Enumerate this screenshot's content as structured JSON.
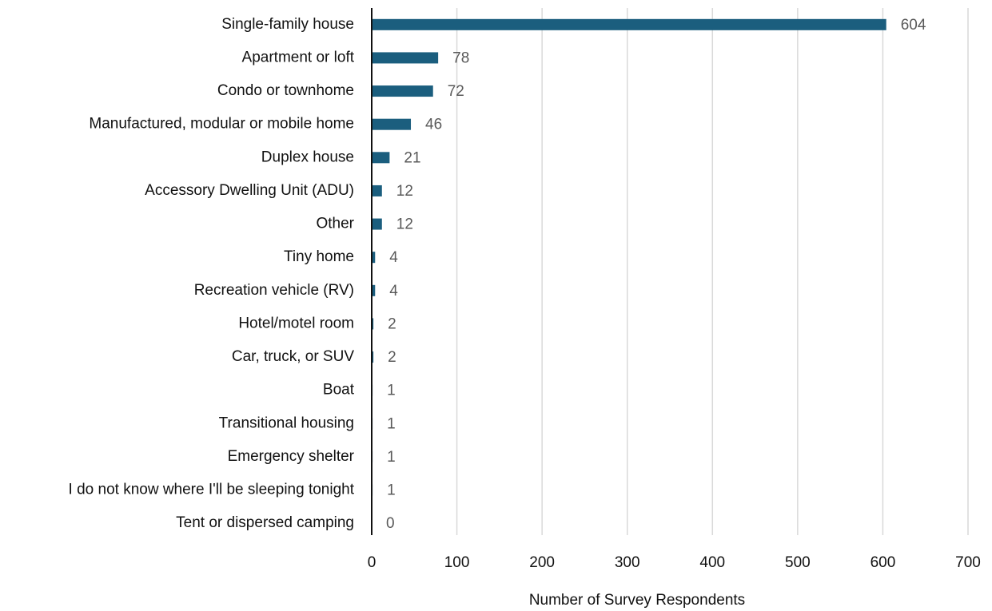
{
  "chart_data": {
    "type": "bar",
    "orientation": "horizontal",
    "x_label": "Number of Survey Respondents",
    "categories": [
      "Single-family house",
      "Apartment or loft",
      "Condo or townhome",
      "Manufactured, modular or mobile home",
      "Duplex house",
      "Accessory Dwelling Unit (ADU)",
      "Other",
      "Tiny home",
      "Recreation vehicle (RV)",
      "Hotel/motel room",
      "Car, truck, or SUV",
      "Boat",
      "Transitional housing",
      "Emergency shelter",
      "I do not know where I'll be sleeping tonight",
      "Tent or dispersed camping"
    ],
    "values": [
      604,
      78,
      72,
      46,
      21,
      12,
      12,
      4,
      4,
      2,
      2,
      1,
      1,
      1,
      1,
      0
    ],
    "color": "#1b5e7e",
    "xlim": [
      0,
      700
    ],
    "xticks": [
      0,
      100,
      200,
      300,
      400,
      500,
      600,
      700
    ],
    "grid": true
  }
}
